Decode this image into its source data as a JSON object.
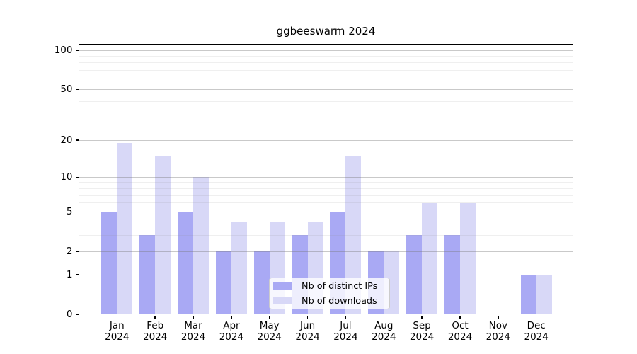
{
  "title": "ggbeeswarm 2024",
  "chart_data": {
    "type": "bar",
    "title": "ggbeeswarm 2024",
    "categories": [
      "Jan",
      "Feb",
      "Mar",
      "Apr",
      "May",
      "Jun",
      "Jul",
      "Aug",
      "Sep",
      "Oct",
      "Nov",
      "Dec"
    ],
    "category_year": "2024",
    "series": [
      {
        "name": "Nb of distinct IPs",
        "color": "#a9a9f4",
        "values": [
          5,
          3,
          5,
          2,
          2,
          3,
          5,
          2,
          3,
          3,
          0,
          1
        ]
      },
      {
        "name": "Nb of downloads",
        "color": "#d8d8f7",
        "values": [
          19,
          15,
          10,
          4,
          4,
          4,
          15,
          2,
          6,
          6,
          0,
          1
        ]
      }
    ],
    "xlabel": "",
    "ylabel": "",
    "scale": "log1p",
    "ylim": [
      0,
      112
    ],
    "y_major_ticks": [
      0,
      1,
      2,
      5,
      10,
      20,
      50,
      100
    ],
    "y_minor_gridlines": [
      3,
      4,
      6,
      7,
      8,
      9,
      30,
      40,
      60,
      70,
      80,
      90
    ],
    "grid": "on",
    "legend_position": "lower-center",
    "axis_color": "#000000",
    "background_color": "#ffffff"
  }
}
